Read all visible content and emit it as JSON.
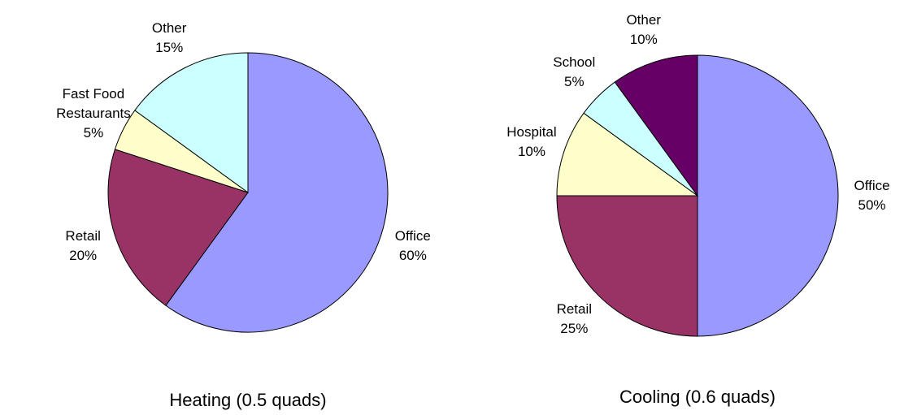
{
  "chart_data": [
    {
      "type": "pie",
      "title": "Heating (0.5 quads)",
      "categories": [
        "Office",
        "Retail",
        "Fast Food Restaurants",
        "Other"
      ],
      "values": [
        60,
        20,
        5,
        15
      ],
      "value_labels": [
        "60%",
        "20%",
        "5%",
        "15%"
      ],
      "colors": [
        "#9999ff",
        "#993366",
        "#ffffcc",
        "#ccffff"
      ]
    },
    {
      "type": "pie",
      "title": "Cooling (0.6 quads)",
      "categories": [
        "Office",
        "Retail",
        "Hospital",
        "School",
        "Other"
      ],
      "values": [
        50,
        25,
        10,
        5,
        10
      ],
      "value_labels": [
        "50%",
        "25%",
        "10%",
        "5%",
        "10%"
      ],
      "colors": [
        "#9999ff",
        "#993366",
        "#ffffcc",
        "#ccffff",
        "#660066"
      ]
    }
  ]
}
